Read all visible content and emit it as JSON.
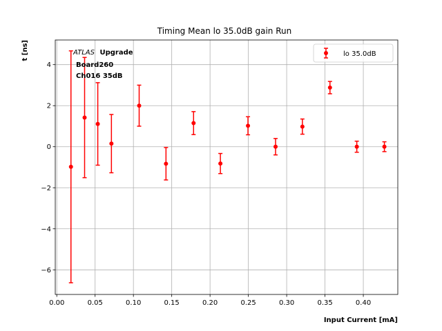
{
  "chart_data": {
    "type": "scatter",
    "title": "Timing Mean lo 35.0dB gain Run",
    "xlabel": "Input Current [mA]",
    "ylabel": "t [ns]",
    "xlim": [
      -0.002,
      0.445
    ],
    "ylim": [
      -7.2,
      5.2
    ],
    "xticks": [
      "0.00",
      "0.05",
      "0.10",
      "0.15",
      "0.20",
      "0.25",
      "0.30",
      "0.35",
      "0.40"
    ],
    "xtick_values": [
      0.0,
      0.05,
      0.1,
      0.15,
      0.2,
      0.25,
      0.3,
      0.35,
      0.4
    ],
    "yticks": [
      "−6",
      "−4",
      "−2",
      "0",
      "2",
      "4"
    ],
    "ytick_values": [
      -6,
      -4,
      -2,
      0,
      2,
      4
    ],
    "grid": true,
    "legend_position": "top-right",
    "annotation": {
      "atlas": "ATLAS",
      "upgrade": "Upgrade",
      "line2": "Board260",
      "line3": "Ch016 35dB"
    },
    "series": [
      {
        "name": "lo 35.0dB",
        "color": "#ff0000",
        "points": [
          {
            "x": 0.0185,
            "y": -0.98,
            "err": 5.65
          },
          {
            "x": 0.0363,
            "y": 1.42,
            "err": 2.93
          },
          {
            "x": 0.0535,
            "y": 1.11,
            "err": 2.01
          },
          {
            "x": 0.0713,
            "y": 0.15,
            "err": 1.42
          },
          {
            "x": 0.1075,
            "y": 2.0,
            "err": 1.0
          },
          {
            "x": 0.1425,
            "y": -0.83,
            "err": 0.79
          },
          {
            "x": 0.1785,
            "y": 1.15,
            "err": 0.56
          },
          {
            "x": 0.2135,
            "y": -0.82,
            "err": 0.49
          },
          {
            "x": 0.2495,
            "y": 1.02,
            "err": 0.44
          },
          {
            "x": 0.2855,
            "y": 0.0,
            "err": 0.4
          },
          {
            "x": 0.3205,
            "y": 0.98,
            "err": 0.37
          },
          {
            "x": 0.3565,
            "y": 2.88,
            "err": 0.3
          },
          {
            "x": 0.3915,
            "y": 0.0,
            "err": 0.27
          },
          {
            "x": 0.4275,
            "y": 0.0,
            "err": 0.24
          }
        ]
      }
    ]
  }
}
